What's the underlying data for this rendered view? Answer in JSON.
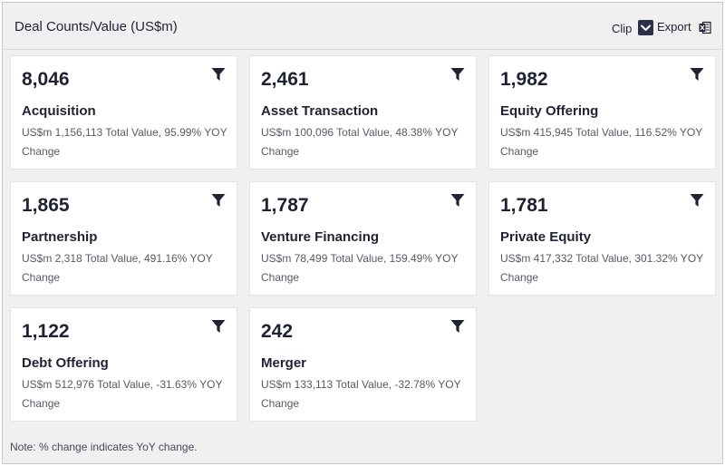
{
  "header": {
    "title": "Deal Counts/Value (US$m)",
    "clip_label": "Clip",
    "export_label": "Export"
  },
  "cards": [
    {
      "count": "8,046",
      "label": "Acquisition",
      "description": "US$m 1,156,113 Total Value, 95.99% YOY Change"
    },
    {
      "count": "2,461",
      "label": "Asset Transaction",
      "description": "US$m 100,096 Total Value, 48.38% YOY Change"
    },
    {
      "count": "1,982",
      "label": "Equity Offering",
      "description": "US$m 415,945 Total Value, 116.52% YOY Change"
    },
    {
      "count": "1,865",
      "label": "Partnership",
      "description": "US$m 2,318 Total Value, 491.16% YOY Change"
    },
    {
      "count": "1,787",
      "label": "Venture Financing",
      "description": "US$m 78,499 Total Value, 159.49% YOY Change"
    },
    {
      "count": "1,781",
      "label": "Private Equity",
      "description": "US$m 417,332 Total Value, 301.32% YOY Change"
    },
    {
      "count": "1,122",
      "label": "Debt Offering",
      "description": "US$m 512,976 Total Value, -31.63% YOY Change"
    },
    {
      "count": "242",
      "label": "Merger",
      "description": "US$m 133,113 Total Value, -32.78% YOY Change"
    }
  ],
  "icons": {
    "filter": "filter-icon",
    "clip_checkbox": "chevron-down-icon",
    "export": "excel-icon"
  },
  "colors": {
    "panel_background": "#f0f0f0",
    "card_background": "#ffffff",
    "text_dark": "#1f2233",
    "text_muted": "#555a66",
    "checkbox": "#2c3047"
  },
  "footer": {
    "note": "Note: % change indicates YoY change."
  }
}
